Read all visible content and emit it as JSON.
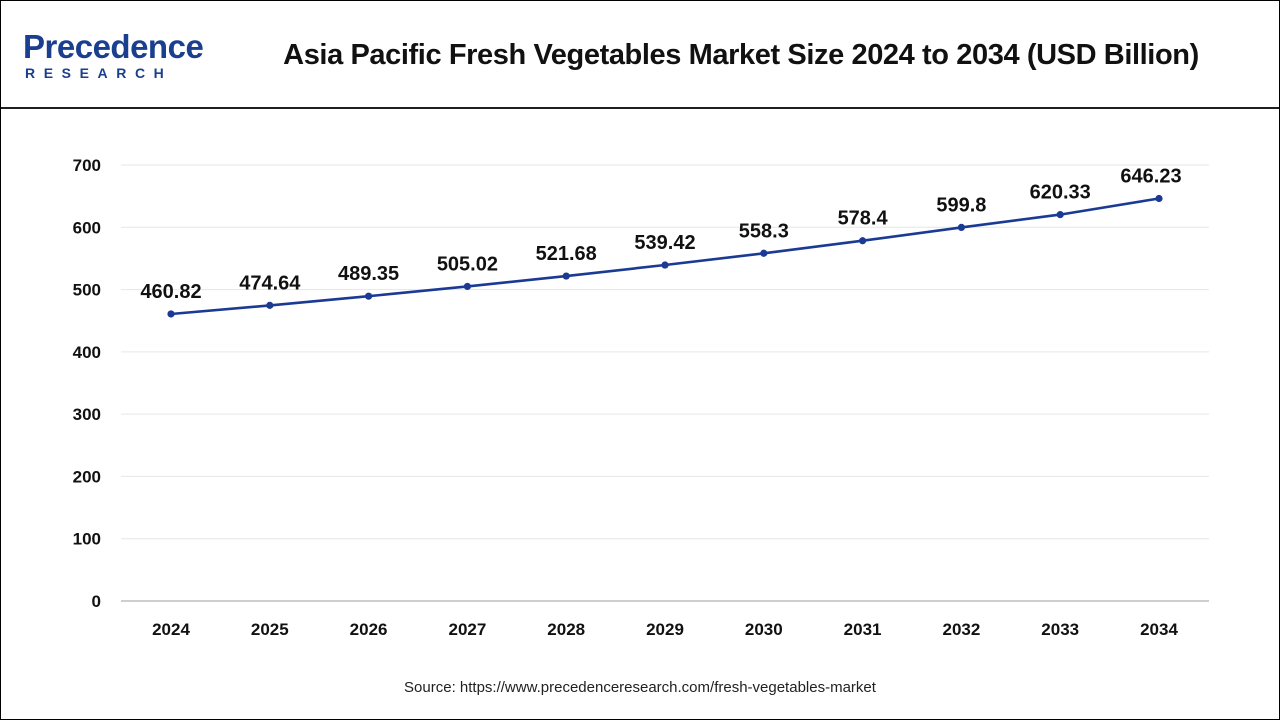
{
  "logo": {
    "brand_first": "P",
    "brand_rest": "recedence",
    "brand_sub": "RESEARCH"
  },
  "title": "Asia Pacific Fresh Vegetables Market Size 2024 to 2034 (USD Billion)",
  "source": "Source: https://www.precedenceresearch.com/fresh-vegetables-market",
  "colors": {
    "line": "#1a3a94",
    "marker": "#1a3a94",
    "grid": "#e6e6e6",
    "axis": "#bdbdbd",
    "logo": "#1b3f8f"
  },
  "chart_data": {
    "type": "line",
    "title": "Asia Pacific Fresh Vegetables Market Size 2024 to 2034 (USD Billion)",
    "xlabel": "",
    "ylabel": "",
    "categories": [
      "2024",
      "2025",
      "2026",
      "2027",
      "2028",
      "2029",
      "2030",
      "2031",
      "2032",
      "2033",
      "2034"
    ],
    "series": [
      {
        "values": [
          460.82,
          474.64,
          489.35,
          505.02,
          521.68,
          539.42,
          558.3,
          578.4,
          599.8,
          620.33,
          646.23
        ]
      }
    ],
    "data_labels": [
      "460.82",
      "474.64",
      "489.35",
      "505.02",
      "521.68",
      "539.42",
      "558.3",
      "578.4",
      "599.8",
      "620.33",
      "646.23"
    ],
    "ylim": [
      0,
      700
    ],
    "yticks": [
      0,
      100,
      200,
      300,
      400,
      500,
      600,
      700
    ],
    "grid": true,
    "legend": "none"
  }
}
